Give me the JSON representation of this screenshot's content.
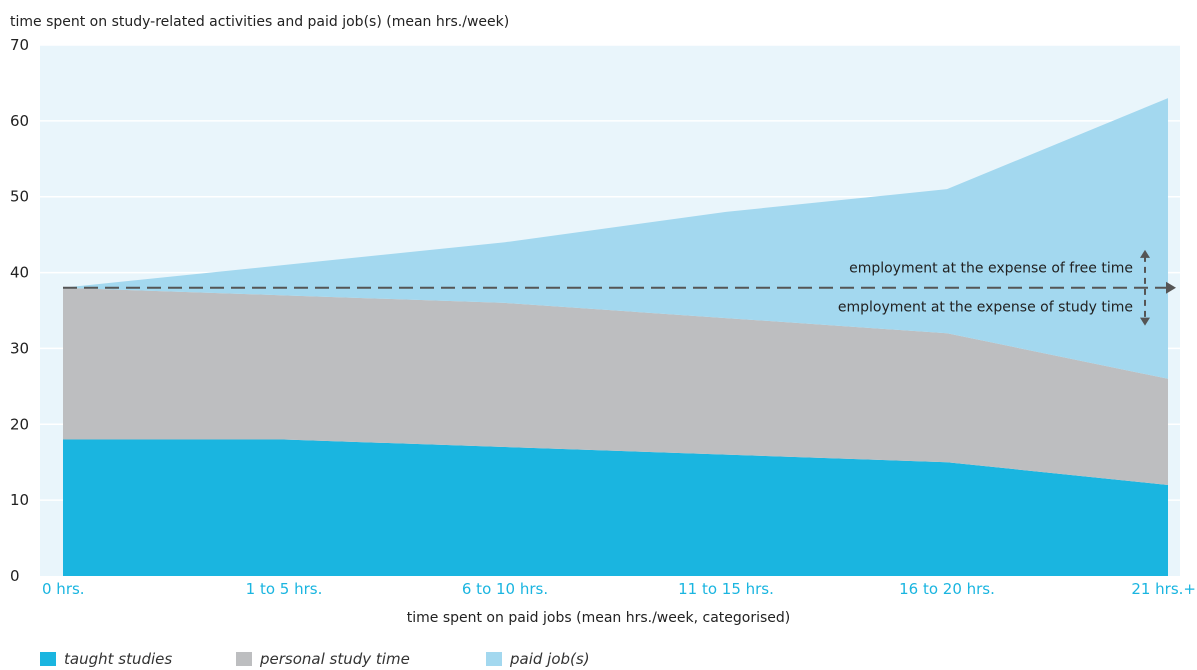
{
  "chart_data": {
    "type": "area",
    "stacked": true,
    "title": "time spent on study-related activities and paid job(s) (mean hrs./week)",
    "xlabel": "time spent on paid jobs (mean hrs./week, categorised)",
    "ylabel": "",
    "categories": [
      "0 hrs.",
      "1 to 5 hrs.",
      "6 to 10 hrs.",
      "11 to 15 hrs.",
      "16 to 20 hrs.",
      "21 hrs.+"
    ],
    "yticks": [
      "0",
      "10",
      "20",
      "30",
      "40",
      "50",
      "60",
      "70"
    ],
    "ylim": [
      0,
      70
    ],
    "series": [
      {
        "name": "taught studies",
        "color": "#1ab5e0",
        "values": [
          18,
          18,
          17,
          16,
          15,
          12
        ]
      },
      {
        "name": "personal study time",
        "color": "#bdbec0",
        "values": [
          20,
          19,
          19,
          18,
          17,
          14
        ]
      },
      {
        "name": "paid job(s)",
        "color": "#a3d8ef",
        "values": [
          0,
          4,
          8,
          14,
          19,
          37
        ]
      }
    ],
    "reference_line": {
      "value": 38
    },
    "annotations": [
      "employment at the expense of free time",
      "employment at the expense of study time"
    ],
    "grid": true,
    "legend_position": "bottom-left",
    "plot_background": "#e9f5fb",
    "tick_label_color": "#1ab5e0"
  }
}
